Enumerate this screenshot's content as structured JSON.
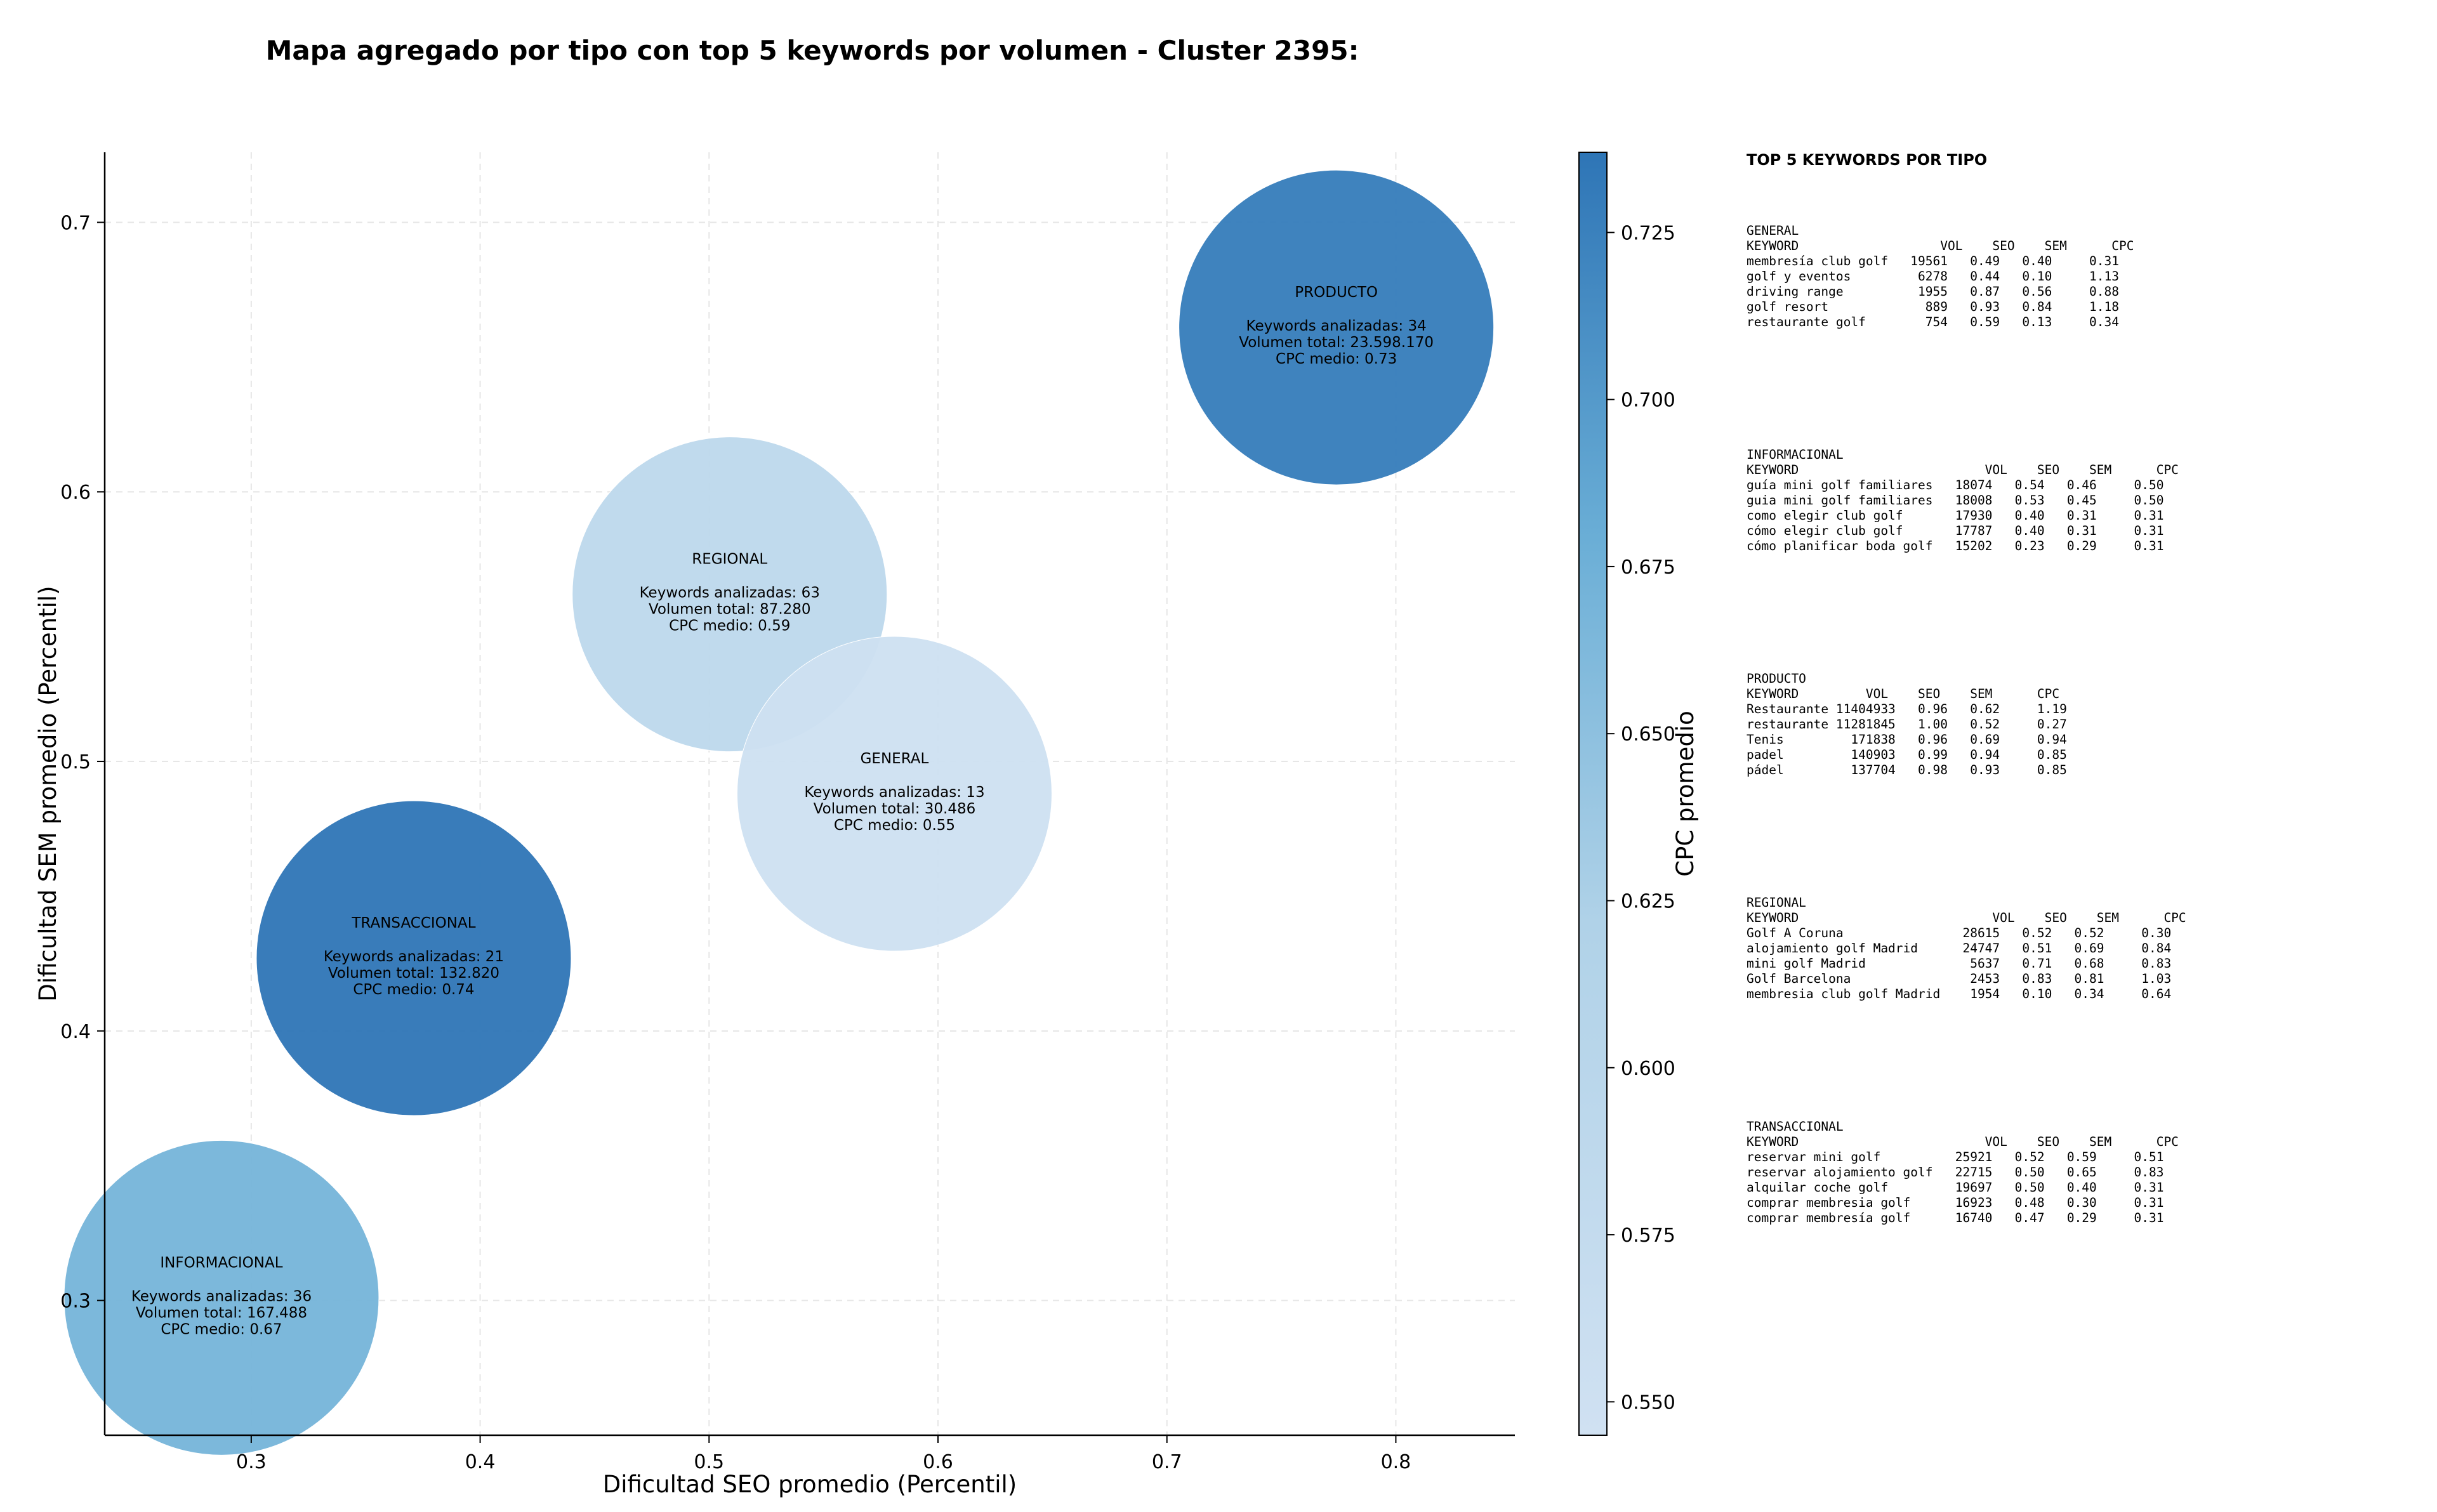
{
  "chart_data": {
    "type": "scatter",
    "subtype": "bubble",
    "title": "Mapa agregado por tipo con top 5 keywords por volumen - Cluster 2395:",
    "xlabel": "Dificultad SEO promedio (Percentil)",
    "ylabel": "Dificultad SEM promedio (Percentil)",
    "xlim": [
      0.236,
      0.852
    ],
    "ylim": [
      0.25,
      0.726
    ],
    "xticks": [
      "0.3",
      "0.4",
      "0.5",
      "0.6",
      "0.7",
      "0.8"
    ],
    "yticks": [
      "0.3",
      "0.4",
      "0.5",
      "0.6",
      "0.7"
    ],
    "grid": true,
    "colorbar": {
      "label": "CPC promedio",
      "range": [
        0.545,
        0.737
      ],
      "ticks": [
        "0.550",
        "0.575",
        "0.600",
        "0.625",
        "0.650",
        "0.675",
        "0.700",
        "0.725"
      ],
      "color_low": "#d0e1f2",
      "color_high": "#2e75b6"
    },
    "points": [
      {
        "name": "PRODUCTO",
        "x": 0.774,
        "y": 0.661,
        "cpc": 0.73,
        "lines": [
          "Keywords analizadas: 34",
          "Volumen total: 23.598.170",
          "CPC medio: 0.73"
        ]
      },
      {
        "name": "REGIONAL",
        "x": 0.509,
        "y": 0.562,
        "cpc": 0.59,
        "lines": [
          "Keywords analizadas: 63",
          "Volumen total: 87.280",
          "CPC medio: 0.59"
        ]
      },
      {
        "name": "GENERAL",
        "x": 0.581,
        "y": 0.488,
        "cpc": 0.55,
        "lines": [
          "Keywords analizadas: 13",
          "Volumen total: 30.486",
          "CPC medio: 0.55"
        ]
      },
      {
        "name": "TRANSACCIONAL",
        "x": 0.371,
        "y": 0.427,
        "cpc": 0.74,
        "lines": [
          "Keywords analizadas: 21",
          "Volumen total: 132.820",
          "CPC medio: 0.74"
        ]
      },
      {
        "name": "INFORMACIONAL",
        "x": 0.287,
        "y": 0.301,
        "cpc": 0.67,
        "lines": [
          "Keywords analizadas: 36",
          "Volumen total: 167.488",
          "CPC medio: 0.67"
        ]
      }
    ]
  },
  "keyword_panel": {
    "heading": "TOP 5 KEYWORDS POR TIPO",
    "sections": [
      {
        "name": "GENERAL",
        "header": "KEYWORD                   VOL    SEO    SEM      CPC",
        "rows": [
          "membresía club golf   19561   0.49   0.40     0.31",
          "golf y eventos         6278   0.44   0.10     1.13",
          "driving range          1955   0.87   0.56     0.88",
          "golf resort             889   0.93   0.84     1.18",
          "restaurante golf        754   0.59   0.13     0.34"
        ]
      },
      {
        "name": "INFORMACIONAL",
        "header": "KEYWORD                         VOL    SEO    SEM      CPC",
        "rows": [
          "guía mini golf familiares   18074   0.54   0.46     0.50",
          "guia mini golf familiares   18008   0.53   0.45     0.50",
          "como elegir club golf       17930   0.40   0.31     0.31",
          "cómo elegir club golf       17787   0.40   0.31     0.31",
          "cómo planificar boda golf   15202   0.23   0.29     0.31"
        ]
      },
      {
        "name": "PRODUCTO",
        "header": "KEYWORD         VOL    SEO    SEM      CPC",
        "rows": [
          "Restaurante 11404933   0.96   0.62     1.19",
          "restaurante 11281845   1.00   0.52     0.27",
          "Tenis         171838   0.96   0.69     0.94",
          "padel         140903   0.99   0.94     0.85",
          "pádel         137704   0.98   0.93     0.85"
        ]
      },
      {
        "name": "REGIONAL",
        "header": "KEYWORD                          VOL    SEO    SEM      CPC",
        "rows": [
          "Golf A Coruna                28615   0.52   0.52     0.30",
          "alojamiento golf Madrid      24747   0.51   0.69     0.84",
          "mini golf Madrid              5637   0.71   0.68     0.83",
          "Golf Barcelona                2453   0.83   0.81     1.03",
          "membresia club golf Madrid    1954   0.10   0.34     0.64"
        ]
      },
      {
        "name": "TRANSACCIONAL",
        "header": "KEYWORD                         VOL    SEO    SEM      CPC",
        "rows": [
          "reservar mini golf          25921   0.52   0.59     0.51",
          "reservar alojamiento golf   22715   0.50   0.65     0.83",
          "alquilar coche golf         19697   0.50   0.40     0.31",
          "comprar membresia golf      16923   0.48   0.30     0.31",
          "comprar membresía golf      16740   0.47   0.29     0.31"
        ]
      }
    ]
  }
}
